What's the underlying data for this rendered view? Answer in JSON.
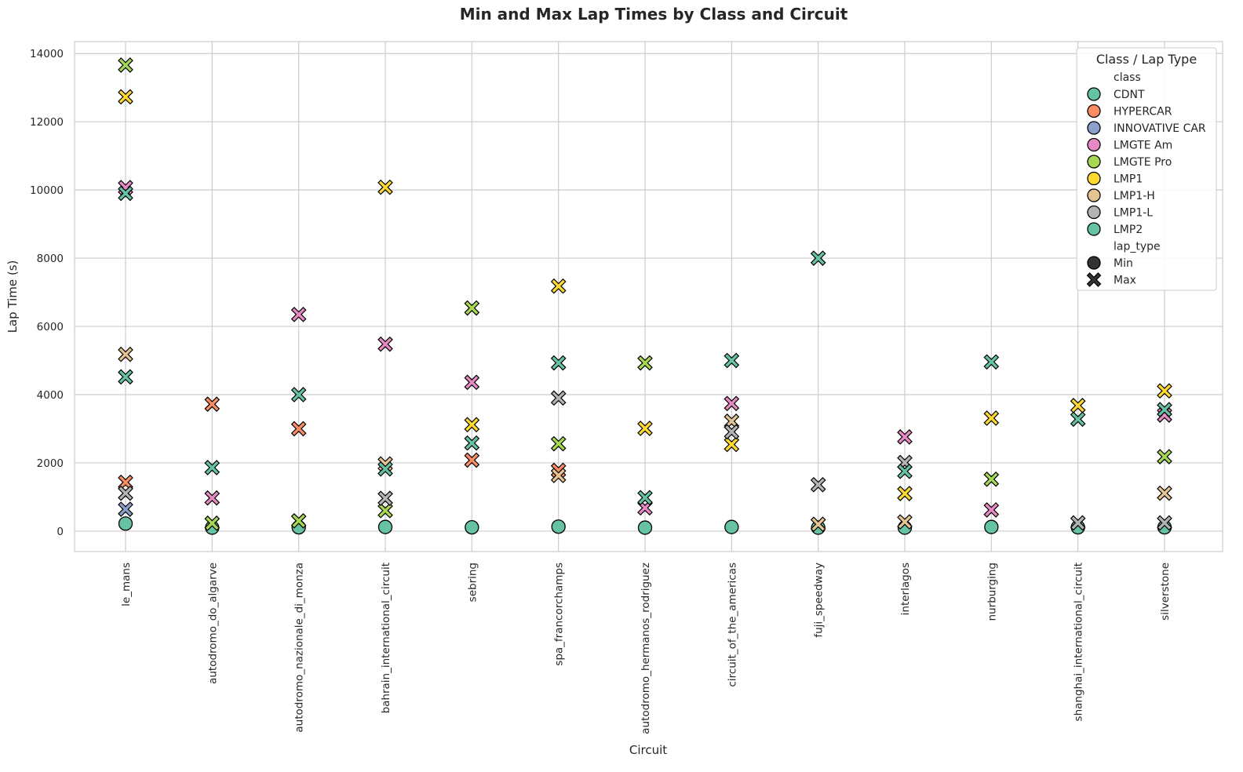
{
  "chart_data": {
    "type": "scatter",
    "title": "Min and Max Lap Times by Class and Circuit",
    "xlabel": "Circuit",
    "ylabel": "Lap Time (s)",
    "ylim": [
      -600,
      14350
    ],
    "yticks": [
      0,
      2000,
      4000,
      6000,
      8000,
      10000,
      12000,
      14000
    ],
    "grid": true,
    "categories": [
      "le_mans",
      "autodromo_do_algarve",
      "autodromo_nazionale_di_monza",
      "bahrain_international_circuit",
      "sebring",
      "spa_francorchamps",
      "autodromo_hermanos_rodriguez",
      "circuit_of_the_americas",
      "fuji_speedway",
      "interlagos",
      "nurburging",
      "shanghai_international_circuit",
      "silverstone"
    ],
    "legend": {
      "title": "Class / Lap Type",
      "position": "top-right",
      "class_header": "class",
      "lap_type_header": "lap_type",
      "lap_types": [
        {
          "name": "Min",
          "marker": "circle"
        },
        {
          "name": "Max",
          "marker": "x"
        }
      ]
    },
    "series": [
      {
        "name": "CDNT",
        "color": "#66c2a5",
        "min": [
          {
            "x": "le_mans",
            "y": 220
          }
        ],
        "max": [
          {
            "x": "le_mans",
            "y": 4520
          }
        ]
      },
      {
        "name": "HYPERCAR",
        "color": "#fc8d62",
        "min": [],
        "max": [
          {
            "x": "le_mans",
            "y": 1430
          },
          {
            "x": "autodromo_do_algarve",
            "y": 3720
          },
          {
            "x": "autodromo_nazionale_di_monza",
            "y": 3000
          },
          {
            "x": "sebring",
            "y": 2080
          },
          {
            "x": "spa_francorchamps",
            "y": 1780
          }
        ]
      },
      {
        "name": "INNOVATIVE CAR",
        "color": "#8da0cb",
        "min": [],
        "max": [
          {
            "x": "le_mans",
            "y": 640
          }
        ]
      },
      {
        "name": "LMGTE Am",
        "color": "#e78ac3",
        "min": [],
        "max": [
          {
            "x": "le_mans",
            "y": 10070
          },
          {
            "x": "autodromo_do_algarve",
            "y": 970
          },
          {
            "x": "autodromo_nazionale_di_monza",
            "y": 6350
          },
          {
            "x": "bahrain_international_circuit",
            "y": 5480
          },
          {
            "x": "sebring",
            "y": 4360
          },
          {
            "x": "autodromo_hermanos_rodriguez",
            "y": 680
          },
          {
            "x": "circuit_of_the_americas",
            "y": 3740
          },
          {
            "x": "interlagos",
            "y": 2760
          },
          {
            "x": "nurburging",
            "y": 620
          },
          {
            "x": "silverstone",
            "y": 3400
          }
        ]
      },
      {
        "name": "LMGTE Pro",
        "color": "#a6d854",
        "min": [],
        "max": [
          {
            "x": "le_mans",
            "y": 13660
          },
          {
            "x": "autodromo_do_algarve",
            "y": 230
          },
          {
            "x": "autodromo_nazionale_di_monza",
            "y": 300
          },
          {
            "x": "bahrain_international_circuit",
            "y": 600
          },
          {
            "x": "sebring",
            "y": 6540
          },
          {
            "x": "spa_francorchamps",
            "y": 2560
          },
          {
            "x": "autodromo_hermanos_rodriguez",
            "y": 4930
          },
          {
            "x": "nurburging",
            "y": 1520
          },
          {
            "x": "silverstone",
            "y": 2180
          }
        ]
      },
      {
        "name": "LMP1",
        "color": "#ffd92f",
        "min": [],
        "max": [
          {
            "x": "le_mans",
            "y": 12730
          },
          {
            "x": "bahrain_international_circuit",
            "y": 10080
          },
          {
            "x": "sebring",
            "y": 3120
          },
          {
            "x": "spa_francorchamps",
            "y": 7180
          },
          {
            "x": "autodromo_hermanos_rodriguez",
            "y": 3010
          },
          {
            "x": "circuit_of_the_americas",
            "y": 2540
          },
          {
            "x": "interlagos",
            "y": 1100
          },
          {
            "x": "nurburging",
            "y": 3310
          },
          {
            "x": "shanghai_international_circuit",
            "y": 3680
          },
          {
            "x": "silverstone",
            "y": 4110
          }
        ]
      },
      {
        "name": "LMP1-H",
        "color": "#e5c494",
        "min": [],
        "max": [
          {
            "x": "le_mans",
            "y": 5180
          },
          {
            "x": "bahrain_international_circuit",
            "y": 1970
          },
          {
            "x": "spa_francorchamps",
            "y": 1630
          },
          {
            "x": "circuit_of_the_americas",
            "y": 3220
          },
          {
            "x": "fuji_speedway",
            "y": 200
          },
          {
            "x": "interlagos",
            "y": 270
          },
          {
            "x": "silverstone",
            "y": 1110
          }
        ]
      },
      {
        "name": "LMP1-L",
        "color": "#b3b3b3",
        "min": [],
        "max": [
          {
            "x": "le_mans",
            "y": 1110
          },
          {
            "x": "bahrain_international_circuit",
            "y": 960
          },
          {
            "x": "spa_francorchamps",
            "y": 3900
          },
          {
            "x": "circuit_of_the_americas",
            "y": 2910
          },
          {
            "x": "fuji_speedway",
            "y": 1360
          },
          {
            "x": "interlagos",
            "y": 2010
          },
          {
            "x": "shanghai_international_circuit",
            "y": 240
          },
          {
            "x": "silverstone",
            "y": 240
          }
        ]
      },
      {
        "name": "LMP2",
        "color": "#66c2a5",
        "min": [
          {
            "x": "autodromo_do_algarve",
            "y": 100
          },
          {
            "x": "autodromo_nazionale_di_monza",
            "y": 110
          },
          {
            "x": "bahrain_international_circuit",
            "y": 120
          },
          {
            "x": "sebring",
            "y": 110
          },
          {
            "x": "spa_francorchamps",
            "y": 130
          },
          {
            "x": "autodromo_hermanos_rodriguez",
            "y": 100
          },
          {
            "x": "circuit_of_the_americas",
            "y": 120
          },
          {
            "x": "fuji_speedway",
            "y": 100
          },
          {
            "x": "interlagos",
            "y": 100
          },
          {
            "x": "nurburging",
            "y": 120
          },
          {
            "x": "shanghai_international_circuit",
            "y": 110
          },
          {
            "x": "silverstone",
            "y": 110
          }
        ],
        "max": [
          {
            "x": "le_mans",
            "y": 9900
          },
          {
            "x": "autodromo_do_algarve",
            "y": 1860
          },
          {
            "x": "autodromo_nazionale_di_monza",
            "y": 4000
          },
          {
            "x": "bahrain_international_circuit",
            "y": 1820
          },
          {
            "x": "sebring",
            "y": 2580
          },
          {
            "x": "spa_francorchamps",
            "y": 4930
          },
          {
            "x": "autodromo_hermanos_rodriguez",
            "y": 980
          },
          {
            "x": "circuit_of_the_americas",
            "y": 5000
          },
          {
            "x": "fuji_speedway",
            "y": 8000
          },
          {
            "x": "interlagos",
            "y": 1750
          },
          {
            "x": "nurburging",
            "y": 4960
          },
          {
            "x": "shanghai_international_circuit",
            "y": 3280
          },
          {
            "x": "silverstone",
            "y": 3560
          }
        ]
      }
    ]
  }
}
